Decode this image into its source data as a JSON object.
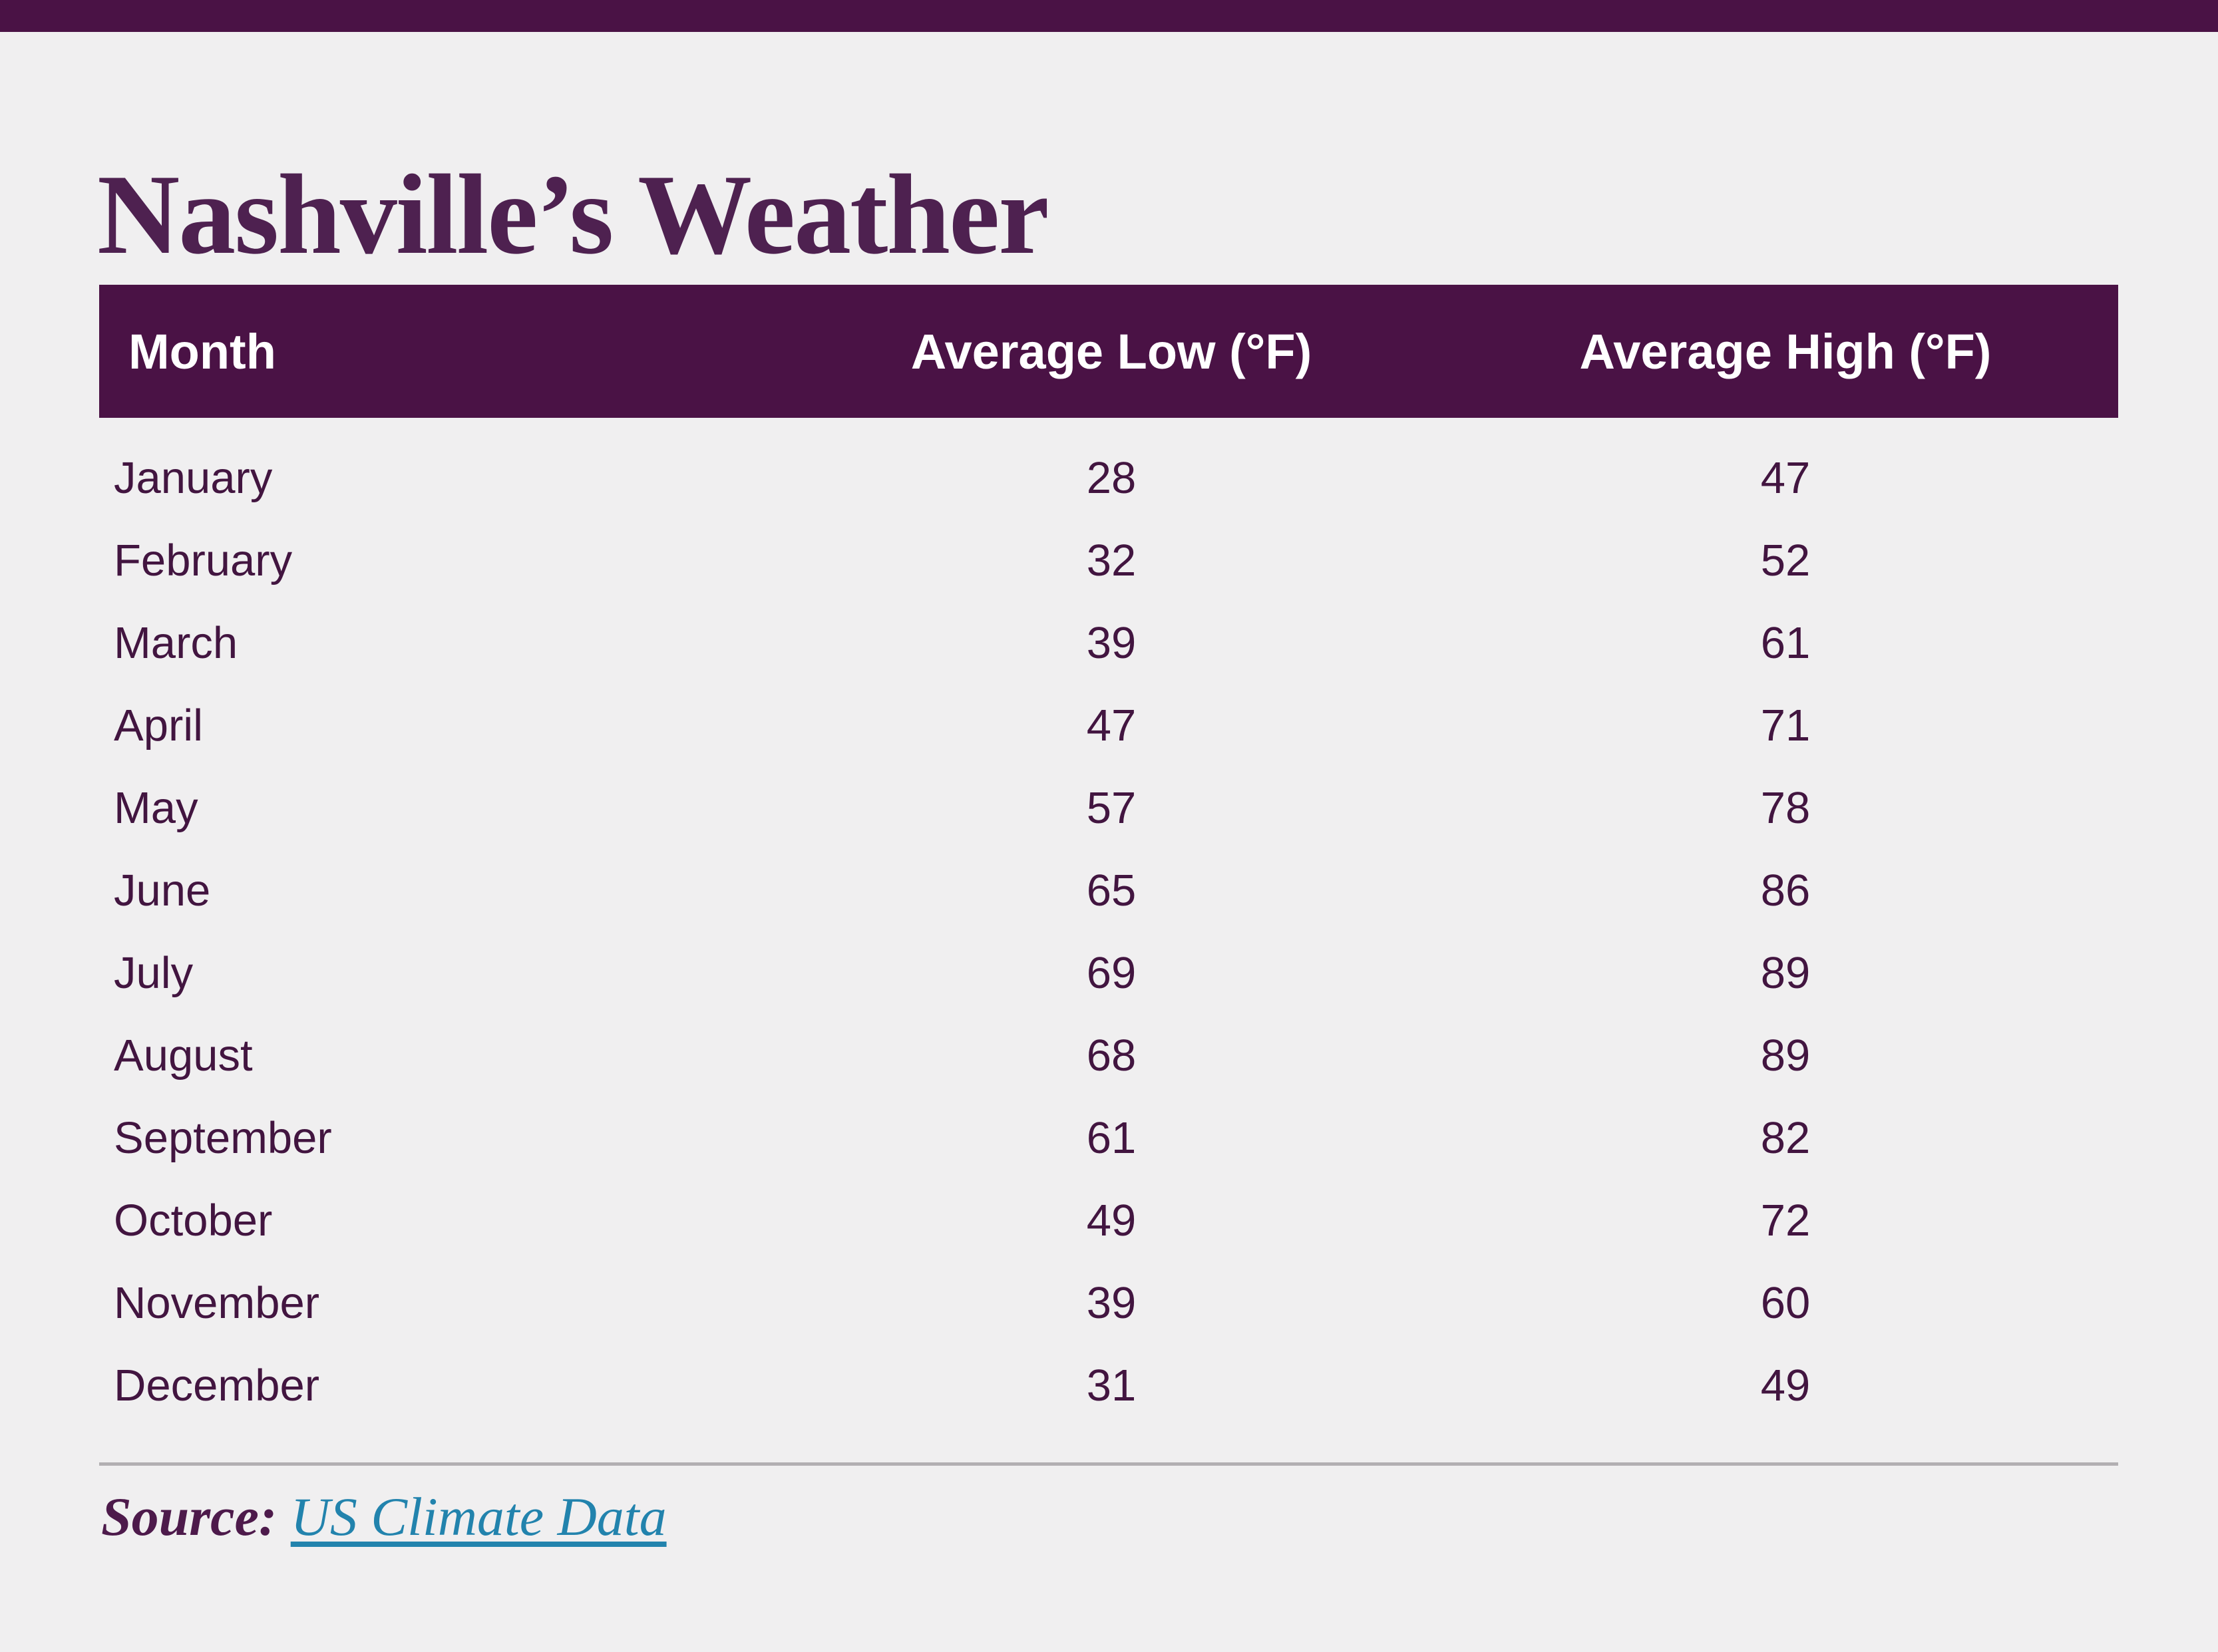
{
  "page": {
    "background_color": "#f0eff0",
    "accent_bar_color": "#4a1245"
  },
  "title": "Nashville’s Weather",
  "title_color": "#4e2150",
  "table": {
    "header": {
      "bg_color": "#4a1245",
      "text_color": "#ffffff",
      "columns": {
        "month": "Month",
        "low": "Average Low (°F)",
        "high": "Average High (°F)"
      }
    },
    "body_text_color": "#421540",
    "rows": [
      {
        "month": "January",
        "low": "28",
        "high": "47"
      },
      {
        "month": "February",
        "low": "32",
        "high": "52"
      },
      {
        "month": "March",
        "low": "39",
        "high": "61"
      },
      {
        "month": "April",
        "low": "47",
        "high": "71"
      },
      {
        "month": "May",
        "low": "57",
        "high": "78"
      },
      {
        "month": "June",
        "low": "65",
        "high": "86"
      },
      {
        "month": "July",
        "low": "69",
        "high": "89"
      },
      {
        "month": "August",
        "low": "68",
        "high": "89"
      },
      {
        "month": "September",
        "low": "61",
        "high": "82"
      },
      {
        "month": "October",
        "low": "49",
        "high": "72"
      },
      {
        "month": "November",
        "low": "39",
        "high": "60"
      },
      {
        "month": "December",
        "low": "31",
        "high": "49"
      }
    ]
  },
  "divider_color": "#b2afb2",
  "source": {
    "label": "Source:",
    "label_color": "#4d1a4b",
    "link_text": "US Climate Data",
    "link_color": "#2283ad"
  }
}
